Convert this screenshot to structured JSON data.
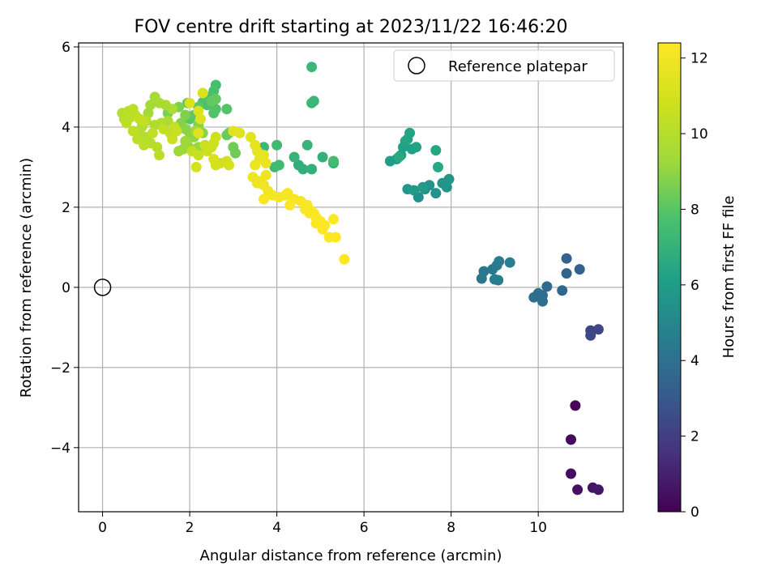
{
  "chart_data": {
    "type": "scatter",
    "title": "FOV centre drift starting at 2023/11/22 16:46:20",
    "xlabel": "Angular distance from reference (arcmin)",
    "ylabel": "Rotation from reference (arcmin)",
    "xlim": [
      -0.55,
      11.95
    ],
    "ylim": [
      -5.6,
      6.1
    ],
    "xticks": [
      0,
      2,
      4,
      6,
      8,
      10
    ],
    "yticks": [
      -4,
      -2,
      0,
      2,
      4,
      6
    ],
    "grid": true,
    "legend": {
      "placement": "top-right",
      "entries": [
        "Reference platepar"
      ]
    },
    "reference_point": {
      "x": 0,
      "y": 0,
      "label": "Reference platepar"
    },
    "colorbar": {
      "label": "Hours from first FF file",
      "range": [
        0,
        12.4
      ],
      "ticks": [
        0,
        2,
        4,
        6,
        8,
        10,
        12
      ],
      "colormap": "viridis"
    },
    "points": [
      [
        10.85,
        -2.95,
        0.2
      ],
      [
        10.75,
        -3.8,
        0.3
      ],
      [
        10.75,
        -4.65,
        0.4
      ],
      [
        10.9,
        -5.05,
        0.5
      ],
      [
        11.25,
        -5.0,
        0.6
      ],
      [
        11.38,
        -5.05,
        0.7
      ],
      [
        11.2,
        -1.08,
        2.2
      ],
      [
        11.38,
        -1.05,
        2.3
      ],
      [
        11.2,
        -1.2,
        2.4
      ],
      [
        10.65,
        0.72,
        3.3
      ],
      [
        10.95,
        0.45,
        3.4
      ],
      [
        10.65,
        0.35,
        3.5
      ],
      [
        10.55,
        -0.08,
        3.6
      ],
      [
        10.2,
        0.02,
        3.7
      ],
      [
        10.1,
        -0.2,
        3.8
      ],
      [
        10.0,
        -0.15,
        3.9
      ],
      [
        9.9,
        -0.25,
        3.95
      ],
      [
        10.1,
        -0.35,
        4.0
      ],
      [
        8.7,
        0.22,
        4.3
      ],
      [
        8.75,
        0.4,
        4.35
      ],
      [
        8.95,
        0.45,
        4.4
      ],
      [
        9.05,
        0.55,
        4.45
      ],
      [
        9.1,
        0.65,
        4.5
      ],
      [
        9.35,
        0.62,
        4.55
      ],
      [
        9.0,
        0.2,
        4.6
      ],
      [
        9.08,
        0.18,
        4.62
      ],
      [
        7.25,
        2.25,
        5.4
      ],
      [
        7.4,
        2.45,
        5.45
      ],
      [
        7.5,
        2.55,
        5.5
      ],
      [
        7.65,
        2.35,
        5.55
      ],
      [
        7.8,
        2.6,
        5.6
      ],
      [
        7.9,
        2.5,
        5.65
      ],
      [
        7.95,
        2.7,
        5.7
      ],
      [
        7.0,
        2.45,
        5.8
      ],
      [
        7.15,
        2.42,
        5.85
      ],
      [
        7.35,
        2.5,
        5.9
      ],
      [
        6.6,
        3.15,
        6.0
      ],
      [
        6.75,
        3.2,
        6.05
      ],
      [
        6.85,
        3.3,
        6.1
      ],
      [
        6.9,
        3.5,
        6.15
      ],
      [
        7.0,
        3.7,
        6.2
      ],
      [
        7.1,
        3.45,
        6.25
      ],
      [
        7.2,
        3.5,
        6.3
      ],
      [
        7.05,
        3.85,
        6.35
      ],
      [
        6.95,
        3.65,
        6.4
      ],
      [
        7.65,
        3.42,
        6.45
      ],
      [
        7.7,
        3.0,
        6.5
      ],
      [
        6.8,
        3.25,
        6.55
      ],
      [
        4.5,
        3.05,
        6.8
      ],
      [
        4.6,
        2.95,
        6.85
      ],
      [
        4.8,
        2.95,
        6.9
      ],
      [
        5.05,
        3.25,
        6.95
      ],
      [
        5.3,
        3.1,
        7.0
      ],
      [
        4.4,
        3.25,
        7.05
      ],
      [
        4.7,
        3.55,
        7.1
      ],
      [
        4.85,
        4.65,
        7.15
      ],
      [
        4.8,
        4.6,
        7.2
      ],
      [
        4.8,
        5.5,
        7.25
      ],
      [
        3.7,
        3.5,
        7.3
      ],
      [
        4.0,
        3.55,
        7.35
      ],
      [
        3.95,
        3.0,
        7.4
      ],
      [
        4.05,
        3.05,
        7.45
      ],
      [
        5.3,
        3.15,
        7.5
      ],
      [
        2.6,
        5.05,
        7.6
      ],
      [
        2.55,
        4.9,
        7.65
      ],
      [
        2.45,
        4.75,
        7.7
      ],
      [
        2.4,
        4.55,
        7.75
      ],
      [
        2.3,
        4.62,
        7.8
      ],
      [
        2.6,
        4.45,
        7.85
      ],
      [
        2.55,
        4.35,
        7.9
      ],
      [
        2.85,
        4.45,
        7.95
      ],
      [
        2.0,
        4.2,
        8.0
      ],
      [
        2.1,
        4.3,
        8.05
      ],
      [
        2.2,
        4.5,
        8.1
      ],
      [
        1.95,
        4.6,
        8.15
      ],
      [
        2.5,
        4.65,
        8.2
      ],
      [
        2.6,
        4.7,
        8.25
      ],
      [
        2.9,
        3.85,
        8.3
      ],
      [
        2.85,
        3.8,
        8.35
      ],
      [
        3.05,
        3.35,
        8.4
      ],
      [
        3.0,
        3.5,
        8.45
      ],
      [
        1.5,
        4.35,
        8.6
      ],
      [
        1.75,
        4.5,
        8.65
      ],
      [
        1.9,
        4.3,
        8.7
      ],
      [
        1.8,
        4.1,
        8.75
      ],
      [
        2.2,
        4.05,
        8.8
      ],
      [
        2.3,
        3.85,
        8.85
      ],
      [
        1.9,
        3.95,
        8.9
      ],
      [
        2.0,
        3.85,
        8.95
      ],
      [
        2.1,
        3.75,
        9.0
      ],
      [
        1.95,
        3.55,
        9.05
      ],
      [
        2.05,
        3.45,
        9.1
      ],
      [
        2.2,
        3.5,
        9.15
      ],
      [
        1.85,
        3.45,
        9.2
      ],
      [
        1.75,
        3.4,
        9.25
      ],
      [
        1.9,
        3.65,
        9.3
      ],
      [
        2.15,
        3.9,
        9.35
      ],
      [
        1.05,
        4.35,
        9.4
      ],
      [
        1.1,
        4.55,
        9.45
      ],
      [
        1.2,
        4.75,
        9.5
      ],
      [
        1.3,
        4.6,
        9.55
      ],
      [
        1.45,
        4.55,
        9.6
      ],
      [
        1.6,
        4.45,
        9.65
      ],
      [
        1.5,
        4.15,
        9.7
      ],
      [
        1.35,
        4.1,
        9.75
      ],
      [
        1.2,
        4.05,
        9.8
      ],
      [
        1.0,
        4.15,
        9.85
      ],
      [
        0.9,
        4.0,
        9.9
      ],
      [
        0.85,
        3.85,
        9.95
      ],
      [
        1.0,
        3.75,
        10.0
      ],
      [
        1.1,
        3.6,
        10.05
      ],
      [
        1.25,
        3.5,
        10.1
      ],
      [
        1.3,
        3.3,
        10.15
      ],
      [
        0.95,
        3.55,
        10.2
      ],
      [
        0.8,
        3.7,
        10.25
      ],
      [
        0.7,
        3.9,
        10.3
      ],
      [
        1.15,
        3.85,
        10.35
      ],
      [
        1.4,
        3.95,
        10.4
      ],
      [
        1.55,
        3.85,
        10.45
      ],
      [
        1.65,
        4.0,
        10.5
      ],
      [
        1.7,
        3.9,
        10.55
      ],
      [
        1.6,
        3.7,
        10.6
      ],
      [
        0.45,
        4.35,
        10.0
      ],
      [
        0.5,
        4.2,
        10.05
      ],
      [
        0.6,
        4.4,
        10.1
      ],
      [
        0.7,
        4.45,
        10.15
      ],
      [
        0.55,
        4.1,
        10.2
      ],
      [
        0.65,
        4.25,
        10.25
      ],
      [
        0.75,
        4.3,
        10.3
      ],
      [
        0.85,
        4.2,
        10.35
      ],
      [
        0.95,
        4.15,
        10.4
      ],
      [
        2.05,
        3.4,
        10.5
      ],
      [
        2.2,
        3.3,
        10.55
      ],
      [
        2.35,
        3.55,
        10.6
      ],
      [
        2.4,
        3.4,
        10.65
      ],
      [
        2.5,
        3.5,
        10.7
      ],
      [
        2.6,
        3.75,
        10.75
      ],
      [
        2.55,
        3.6,
        10.8
      ],
      [
        2.7,
        3.1,
        10.85
      ],
      [
        2.6,
        3.05,
        10.9
      ],
      [
        2.85,
        3.15,
        10.95
      ],
      [
        2.9,
        3.05,
        11.0
      ],
      [
        2.15,
        3.0,
        11.05
      ],
      [
        2.55,
        3.2,
        11.1
      ],
      [
        2.3,
        4.85,
        11.15
      ],
      [
        2.0,
        4.6,
        11.2
      ],
      [
        2.2,
        4.4,
        11.25
      ],
      [
        2.25,
        4.2,
        11.3
      ],
      [
        2.2,
        3.85,
        11.35
      ],
      [
        3.0,
        3.9,
        11.4
      ],
      [
        3.15,
        3.85,
        11.45
      ],
      [
        3.4,
        3.75,
        11.5
      ],
      [
        3.5,
        3.55,
        11.55
      ],
      [
        3.55,
        3.4,
        11.6
      ],
      [
        3.6,
        3.2,
        11.65
      ],
      [
        3.7,
        3.3,
        11.7
      ],
      [
        3.75,
        3.1,
        11.75
      ],
      [
        3.5,
        3.05,
        11.8
      ],
      [
        3.45,
        2.75,
        11.85
      ],
      [
        3.55,
        2.6,
        11.9
      ],
      [
        3.7,
        2.55,
        11.95
      ],
      [
        3.8,
        2.4,
        12.0
      ],
      [
        3.9,
        2.3,
        12.05
      ],
      [
        4.05,
        2.25,
        12.1
      ],
      [
        3.7,
        2.2,
        12.15
      ],
      [
        3.6,
        2.65,
        12.0
      ],
      [
        3.75,
        2.8,
        11.9
      ],
      [
        4.2,
        2.3,
        12.1
      ],
      [
        4.4,
        2.2,
        12.15
      ],
      [
        4.55,
        2.15,
        12.2
      ],
      [
        4.7,
        2.05,
        12.25
      ],
      [
        4.8,
        1.9,
        12.3
      ],
      [
        4.85,
        1.85,
        12.3
      ],
      [
        4.9,
        1.75,
        12.35
      ],
      [
        5.0,
        1.65,
        12.35
      ],
      [
        5.1,
        1.55,
        12.35
      ],
      [
        4.9,
        1.6,
        12.35
      ],
      [
        4.75,
        1.85,
        12.3
      ],
      [
        4.65,
        1.95,
        12.3
      ],
      [
        5.05,
        1.45,
        12.35
      ],
      [
        5.2,
        1.25,
        12.4
      ],
      [
        5.35,
        1.25,
        12.4
      ],
      [
        5.3,
        1.7,
        12.4
      ],
      [
        5.55,
        0.7,
        12.4
      ],
      [
        4.25,
        2.35,
        12.2
      ],
      [
        4.3,
        2.05,
        12.25
      ]
    ]
  }
}
